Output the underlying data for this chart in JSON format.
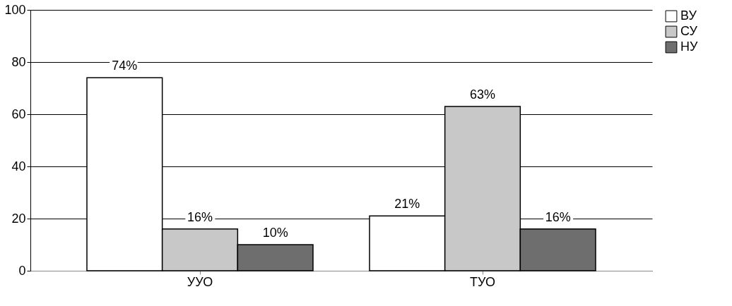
{
  "chart_data": {
    "type": "bar",
    "categories": [
      "УУО",
      "ТУО"
    ],
    "series": [
      {
        "name": "ВУ",
        "color": "#ffffff",
        "values": [
          74,
          21
        ],
        "value_labels": [
          "74%",
          "21%"
        ]
      },
      {
        "name": "СУ",
        "color": "#c8c8c8",
        "values": [
          16,
          63
        ],
        "value_labels": [
          "16%",
          "63%"
        ]
      },
      {
        "name": "НУ",
        "color": "#6e6e6e",
        "values": [
          10,
          16
        ],
        "value_labels": [
          "10%",
          "16%"
        ]
      }
    ],
    "ylim": [
      0,
      100
    ],
    "yticks": [
      0,
      20,
      40,
      60,
      80,
      100
    ],
    "grid": "y",
    "legend": "right"
  }
}
